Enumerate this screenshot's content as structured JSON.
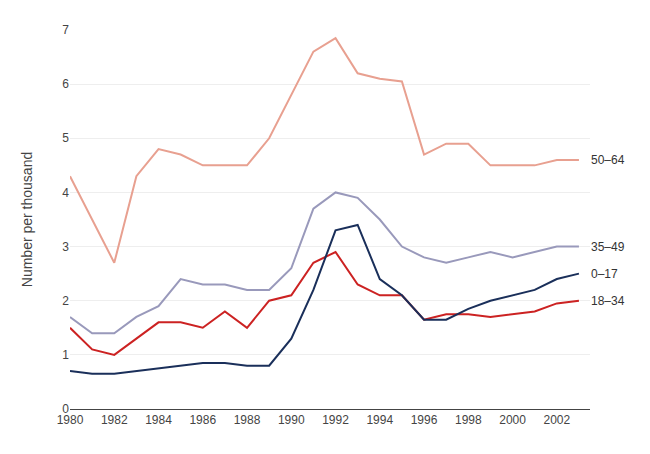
{
  "chart_data": {
    "type": "line",
    "ylabel": "Number per thousand",
    "x": [
      1980,
      1981,
      1982,
      1983,
      1984,
      1985,
      1986,
      1987,
      1988,
      1989,
      1990,
      1991,
      1992,
      1993,
      1994,
      1995,
      1996,
      1997,
      1998,
      1999,
      2000,
      2001,
      2002,
      2003
    ],
    "series": [
      {
        "name": "50–64",
        "color": "#e8a090",
        "values": [
          4.3,
          3.5,
          2.7,
          4.3,
          4.8,
          4.7,
          4.5,
          4.5,
          4.5,
          5.0,
          5.8,
          6.6,
          6.85,
          6.2,
          6.1,
          6.05,
          4.7,
          4.9,
          4.9,
          4.5,
          4.5,
          4.5,
          4.6,
          4.6
        ]
      },
      {
        "name": "35–49",
        "color": "#9999bb",
        "values": [
          1.7,
          1.4,
          1.4,
          1.7,
          1.9,
          2.4,
          2.3,
          2.3,
          2.2,
          2.2,
          2.6,
          3.7,
          4.0,
          3.9,
          3.5,
          3.0,
          2.8,
          2.7,
          2.8,
          2.9,
          2.8,
          2.9,
          3.0,
          3.0
        ]
      },
      {
        "name": "18–34",
        "color": "#cc2222",
        "values": [
          1.5,
          1.1,
          1.0,
          1.3,
          1.6,
          1.6,
          1.5,
          1.8,
          1.5,
          2.0,
          2.1,
          2.7,
          2.9,
          2.3,
          2.1,
          2.1,
          1.65,
          1.75,
          1.75,
          1.7,
          1.75,
          1.8,
          1.95,
          2.0
        ]
      },
      {
        "name": "0–17",
        "color": "#1a2f5a",
        "values": [
          0.7,
          0.65,
          0.65,
          0.7,
          0.75,
          0.8,
          0.85,
          0.85,
          0.8,
          0.8,
          1.3,
          2.2,
          3.3,
          3.4,
          2.4,
          2.1,
          1.65,
          1.65,
          1.85,
          2.0,
          2.1,
          2.2,
          2.4,
          2.5
        ]
      }
    ],
    "xlim": [
      1980,
      2003.5
    ],
    "xticks": [
      1980,
      1982,
      1984,
      1986,
      1988,
      1990,
      1992,
      1994,
      1996,
      1998,
      2000,
      2002
    ],
    "ylim": [
      0,
      7
    ],
    "yticks": [
      0,
      1,
      2,
      3,
      4,
      5,
      6,
      7
    ],
    "grid": true
  }
}
